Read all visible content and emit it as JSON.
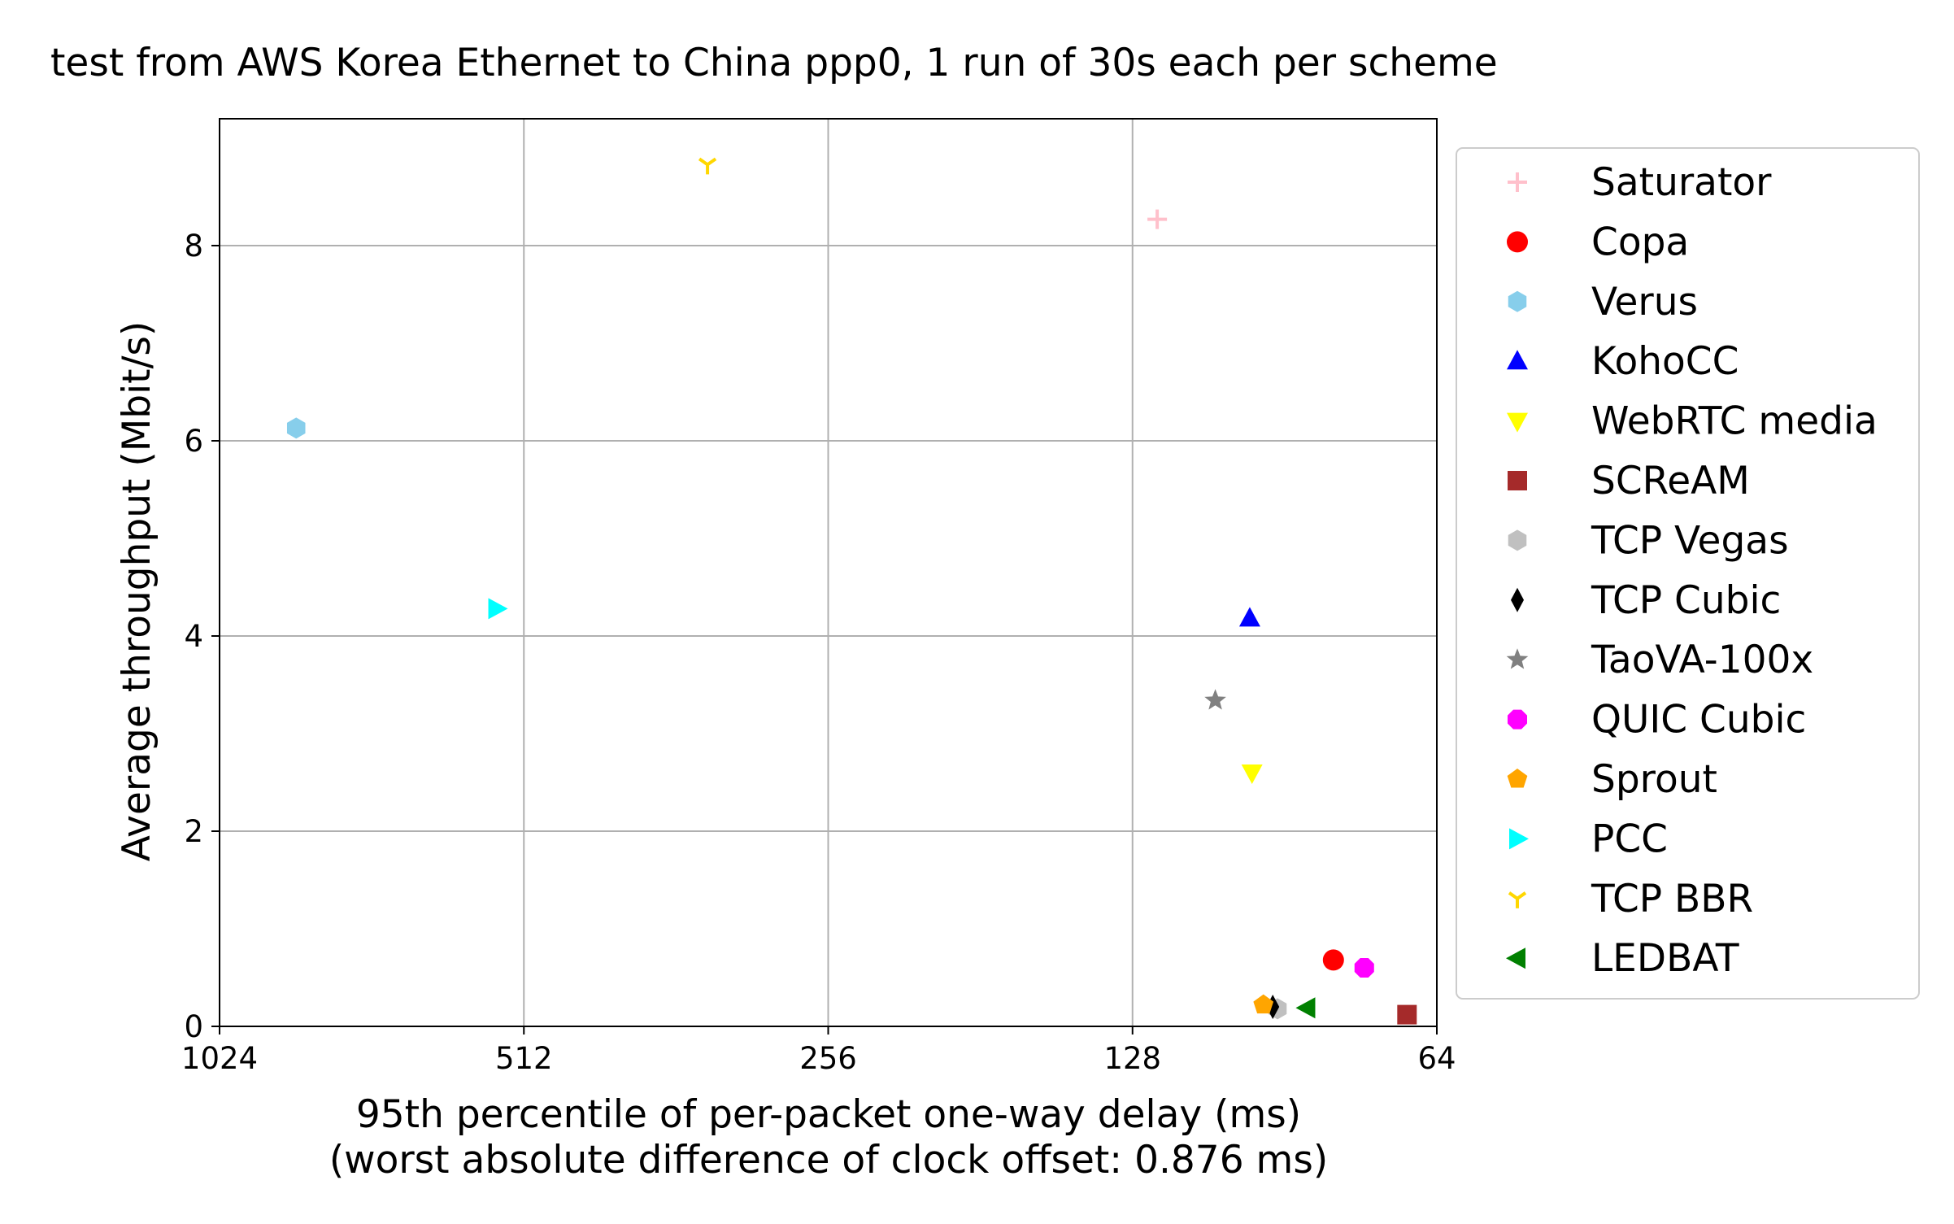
{
  "chart_data": {
    "type": "scatter",
    "title": "test from AWS Korea Ethernet to China ppp0, 1 run of 30s each per scheme",
    "xlabel_line1": "95th percentile of per-packet one-way delay (ms)",
    "xlabel_line2": "(worst absolute difference of clock offset: 0.876 ms)",
    "ylabel": "Average throughput (Mbit/s)",
    "x_scale": "log2",
    "x_inverted": true,
    "xlim": [
      1024,
      64
    ],
    "ylim": [
      0,
      9.3
    ],
    "x_ticks": [
      {
        "value": 1024,
        "label": "1024"
      },
      {
        "value": 512,
        "label": "512"
      },
      {
        "value": 256,
        "label": "256"
      },
      {
        "value": 128,
        "label": "128"
      },
      {
        "value": 64,
        "label": "64"
      }
    ],
    "y_ticks": [
      {
        "value": 0,
        "label": "0"
      },
      {
        "value": 2,
        "label": "2"
      },
      {
        "value": 4,
        "label": "4"
      },
      {
        "value": 6,
        "label": "6"
      },
      {
        "value": 8,
        "label": "8"
      }
    ],
    "grid": true,
    "legend_position": "right-outside",
    "series": [
      {
        "name": "Saturator",
        "marker": "plus",
        "color": "#ffc0cb",
        "x": 121,
        "y": 8.27
      },
      {
        "name": "Copa",
        "marker": "circle",
        "color": "#ff0000",
        "x": 81,
        "y": 0.68
      },
      {
        "name": "Verus",
        "marker": "hexagon",
        "color": "#87ceeb",
        "x": 860,
        "y": 6.13
      },
      {
        "name": "KohoCC",
        "marker": "triangle-up",
        "color": "#0000ff",
        "x": 98,
        "y": 4.18
      },
      {
        "name": "WebRTC media",
        "marker": "triangle-down",
        "color": "#ffff00",
        "x": 97.5,
        "y": 2.6
      },
      {
        "name": "SCReAM",
        "marker": "square",
        "color": "#a52a2a",
        "x": 68.5,
        "y": 0.12
      },
      {
        "name": "TCP Vegas",
        "marker": "hexagon",
        "color": "#c0c0c0",
        "x": 92,
        "y": 0.18
      },
      {
        "name": "TCP Cubic",
        "marker": "thin-diamond",
        "color": "#000000",
        "x": 93,
        "y": 0.2
      },
      {
        "name": "TaoVA-100x",
        "marker": "star",
        "color": "#808080",
        "x": 106,
        "y": 3.34
      },
      {
        "name": "QUIC Cubic",
        "marker": "octagon",
        "color": "#ff00ff",
        "x": 75.5,
        "y": 0.6
      },
      {
        "name": "Sprout",
        "marker": "pentagon",
        "color": "#ffa500",
        "x": 95,
        "y": 0.22
      },
      {
        "name": "PCC",
        "marker": "triangle-right",
        "color": "#00ffff",
        "x": 545,
        "y": 4.28
      },
      {
        "name": "TCP BBR",
        "marker": "tri-down",
        "color": "#ffd700",
        "x": 337,
        "y": 8.83
      },
      {
        "name": "LEDBAT",
        "marker": "triangle-left",
        "color": "#008000",
        "x": 86,
        "y": 0.19
      }
    ]
  }
}
